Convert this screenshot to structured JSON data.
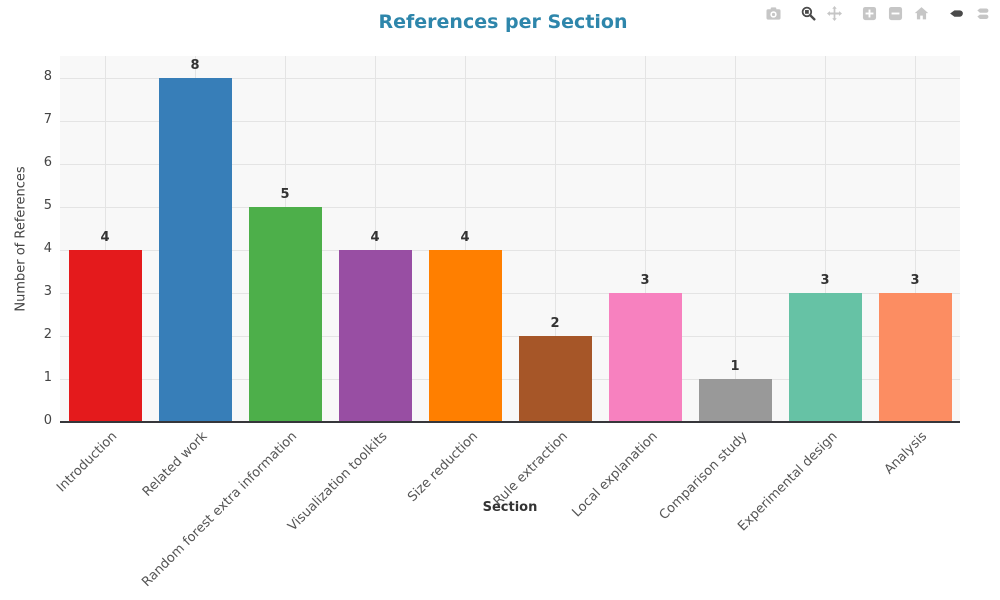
{
  "chart_data": {
    "type": "bar",
    "title": "References per Section",
    "xlabel": "Section",
    "ylabel": "Number of References",
    "categories": [
      "Introduction",
      "Related work",
      "Random forest extra information",
      "Visualization toolkits",
      "Size reduction",
      "Rule extraction",
      "Local explanation",
      "Comparison study",
      "Experimental design",
      "Analysis"
    ],
    "values": [
      4,
      8,
      5,
      4,
      4,
      2,
      3,
      1,
      3,
      3
    ],
    "bar_colors": [
      "#e41a1c",
      "#377eb8",
      "#4daf4a",
      "#984ea3",
      "#ff7f00",
      "#a65628",
      "#f781bf",
      "#999999",
      "#66c2a5",
      "#fc8d62"
    ],
    "value_labels": [
      "4",
      "8",
      "5",
      "4",
      "4",
      "2",
      "3",
      "1",
      "3",
      "3"
    ],
    "yticks": [
      0,
      1,
      2,
      3,
      4,
      5,
      6,
      7,
      8
    ],
    "ylim": [
      0,
      8.5
    ],
    "grid": true,
    "legend_position": "none"
  },
  "theme": {
    "title_color": "#2e86ab",
    "plot_bg": "#f8f8f8",
    "paper_bg": "#ffffff",
    "grid_color": "#e4e4e4",
    "axis_line_color": "#36363a",
    "ytick_color": "#444444",
    "xtick_color": "#555555",
    "value_label_color": "#333333",
    "modebar_inactive_color": "#c6c6c6",
    "modebar_active_color": "#4a4a4a"
  },
  "modebar": {
    "buttons": [
      {
        "id": "download-png",
        "icon": "camera-icon",
        "active": false,
        "group": 0
      },
      {
        "id": "zoom",
        "icon": "magnifier-icon",
        "active": true,
        "group": 1
      },
      {
        "id": "pan",
        "icon": "pan-arrows-icon",
        "active": false,
        "group": 1
      },
      {
        "id": "zoom-in",
        "icon": "zoom-in-icon",
        "active": false,
        "group": 2
      },
      {
        "id": "zoom-out",
        "icon": "zoom-out-icon",
        "active": false,
        "group": 2
      },
      {
        "id": "reset-axes",
        "icon": "home-icon",
        "active": false,
        "group": 2
      },
      {
        "id": "hover-closest",
        "icon": "hover-closest-icon",
        "active": true,
        "group": 3
      },
      {
        "id": "hover-compare",
        "icon": "hover-compare-icon",
        "active": false,
        "group": 3
      }
    ]
  }
}
